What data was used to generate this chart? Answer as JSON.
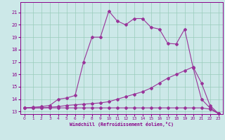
{
  "xlabel": "Windchill (Refroidissement éolien,°C)",
  "bg_color": "#cce8e8",
  "grid_color": "#99ccbb",
  "line_color": "#993399",
  "xlim": [
    -0.5,
    23.5
  ],
  "ylim": [
    12.8,
    21.8
  ],
  "xticks": [
    0,
    1,
    2,
    3,
    4,
    5,
    6,
    7,
    8,
    9,
    10,
    11,
    12,
    13,
    14,
    15,
    16,
    17,
    18,
    19,
    20,
    21,
    22,
    23
  ],
  "yticks": [
    13,
    14,
    15,
    16,
    17,
    18,
    19,
    20,
    21
  ],
  "line1_x": [
    0,
    1,
    2,
    3,
    4,
    5,
    6,
    7,
    8,
    9,
    10,
    11,
    12,
    13,
    14,
    15,
    16,
    17,
    18,
    19,
    20,
    21,
    22,
    23
  ],
  "line1_y": [
    13.3,
    13.35,
    13.4,
    13.5,
    14.0,
    14.1,
    14.3,
    17.0,
    19.0,
    19.0,
    21.1,
    20.3,
    20.0,
    20.5,
    20.5,
    19.8,
    19.65,
    18.5,
    18.45,
    19.65,
    16.55,
    14.0,
    13.3,
    12.85
  ],
  "line2_x": [
    0,
    1,
    2,
    3,
    4,
    5,
    6,
    7,
    8,
    9,
    10,
    11,
    12,
    13,
    14,
    15,
    16,
    17,
    18,
    19,
    20,
    21,
    22,
    23
  ],
  "line2_y": [
    13.3,
    13.3,
    13.3,
    13.35,
    13.4,
    13.5,
    13.55,
    13.6,
    13.65,
    13.7,
    13.8,
    14.0,
    14.2,
    14.4,
    14.6,
    14.9,
    15.3,
    15.7,
    16.0,
    16.3,
    16.6,
    15.3,
    13.5,
    12.85
  ],
  "line3_x": [
    0,
    1,
    2,
    3,
    4,
    5,
    6,
    7,
    8,
    9,
    10,
    11,
    12,
    13,
    14,
    15,
    16,
    17,
    18,
    19,
    20,
    21,
    22,
    23
  ],
  "line3_y": [
    13.3,
    13.3,
    13.3,
    13.3,
    13.3,
    13.3,
    13.3,
    13.3,
    13.3,
    13.3,
    13.3,
    13.3,
    13.3,
    13.3,
    13.3,
    13.3,
    13.3,
    13.3,
    13.3,
    13.3,
    13.3,
    13.3,
    13.2,
    12.85
  ]
}
